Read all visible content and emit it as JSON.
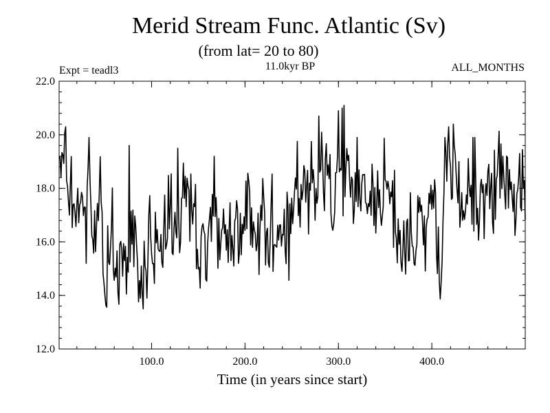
{
  "chart_data": {
    "type": "line",
    "title": "Merid Stream Func. Atlantic (Sv)",
    "subtitle": "(from lat= 20 to 80)",
    "period_label": "11.0kyr BP",
    "expt_label": "Expt = teadl3",
    "months_label": "ALL_MONTHS",
    "xlabel": "Time (in years since start)",
    "ylabel": "",
    "xlim": [
      1,
      500
    ],
    "ylim": [
      12.0,
      22.0
    ],
    "x_ticks": [
      {
        "value": 100,
        "label": "100.0"
      },
      {
        "value": 200,
        "label": "200.0"
      },
      {
        "value": 300,
        "label": "300.0"
      },
      {
        "value": 400,
        "label": "400.0"
      }
    ],
    "y_ticks": [
      {
        "value": 12,
        "label": "12.0"
      },
      {
        "value": 14,
        "label": "14.0"
      },
      {
        "value": 16,
        "label": "16.0"
      },
      {
        "value": 18,
        "label": "18.0"
      },
      {
        "value": 20,
        "label": "20.0"
      },
      {
        "value": 22,
        "label": "22.0"
      }
    ],
    "x_minor_step": 20,
    "y_minor_step": 0.4,
    "anchors": [
      [
        1,
        18.8
      ],
      [
        5,
        18.5
      ],
      [
        8,
        19.8
      ],
      [
        10,
        17.2
      ],
      [
        14,
        18.6
      ],
      [
        18,
        16.6
      ],
      [
        22,
        17.3
      ],
      [
        26,
        16.9
      ],
      [
        30,
        16.4
      ],
      [
        33,
        19.8
      ],
      [
        36,
        16.2
      ],
      [
        40,
        17.0
      ],
      [
        44,
        18.3
      ],
      [
        47,
        17.0
      ],
      [
        50,
        14.5
      ],
      [
        54,
        15.4
      ],
      [
        58,
        16.4
      ],
      [
        62,
        14.3
      ],
      [
        66,
        16.0
      ],
      [
        70,
        15.1
      ],
      [
        74,
        14.4
      ],
      [
        78,
        16.6
      ],
      [
        82,
        16.8
      ],
      [
        86,
        15.6
      ],
      [
        90,
        14.6
      ],
      [
        94,
        14.0
      ],
      [
        98,
        16.6
      ],
      [
        102,
        15.7
      ],
      [
        106,
        16.5
      ],
      [
        110,
        15.1
      ],
      [
        114,
        17.4
      ],
      [
        118,
        17.2
      ],
      [
        122,
        16.7
      ],
      [
        126,
        16.3
      ],
      [
        130,
        17.5
      ],
      [
        134,
        17.7
      ],
      [
        138,
        18.4
      ],
      [
        142,
        17.1
      ],
      [
        146,
        18.6
      ],
      [
        150,
        15.3
      ],
      [
        154,
        16.9
      ],
      [
        158,
        15.0
      ],
      [
        162,
        16.2
      ],
      [
        166,
        17.8
      ],
      [
        170,
        17.2
      ],
      [
        174,
        16.3
      ],
      [
        178,
        16.8
      ],
      [
        182,
        15.8
      ],
      [
        186,
        16.3
      ],
      [
        190,
        17.1
      ],
      [
        194,
        16.9
      ],
      [
        198,
        16.0
      ],
      [
        202,
        17.5
      ],
      [
        206,
        16.8
      ],
      [
        210,
        16.7
      ],
      [
        214,
        15.7
      ],
      [
        218,
        17.4
      ],
      [
        222,
        16.7
      ],
      [
        226,
        16.3
      ],
      [
        230,
        17.3
      ],
      [
        234,
        16.0
      ],
      [
        238,
        16.1
      ],
      [
        242,
        16.8
      ],
      [
        246,
        16.2
      ],
      [
        250,
        16.7
      ],
      [
        254,
        18.5
      ],
      [
        258,
        17.4
      ],
      [
        262,
        18.0
      ],
      [
        266,
        17.6
      ],
      [
        270,
        17.8
      ],
      [
        274,
        18.1
      ],
      [
        278,
        17.5
      ],
      [
        282,
        19.1
      ],
      [
        286,
        18.2
      ],
      [
        290,
        18.3
      ],
      [
        294,
        17.3
      ],
      [
        298,
        19.0
      ],
      [
        302,
        17.9
      ],
      [
        306,
        18.1
      ],
      [
        310,
        19.2
      ],
      [
        314,
        17.6
      ],
      [
        318,
        18.3
      ],
      [
        322,
        17.9
      ],
      [
        326,
        18.6
      ],
      [
        330,
        17.2
      ],
      [
        334,
        18.3
      ],
      [
        338,
        17.3
      ],
      [
        342,
        17.9
      ],
      [
        346,
        18.2
      ],
      [
        350,
        18.0
      ],
      [
        354,
        17.1
      ],
      [
        358,
        17.5
      ],
      [
        362,
        16.9
      ],
      [
        366,
        16.3
      ],
      [
        370,
        15.3
      ],
      [
        374,
        16.8
      ],
      [
        378,
        16.6
      ],
      [
        382,
        16.2
      ],
      [
        386,
        17.4
      ],
      [
        390,
        16.9
      ],
      [
        394,
        16.8
      ],
      [
        398,
        17.3
      ],
      [
        402,
        17.4
      ],
      [
        406,
        15.6
      ],
      [
        410,
        14.9
      ],
      [
        414,
        18.6
      ],
      [
        418,
        18.9
      ],
      [
        422,
        18.1
      ],
      [
        426,
        18.4
      ],
      [
        430,
        17.3
      ],
      [
        434,
        17.1
      ],
      [
        438,
        18.1
      ],
      [
        442,
        17.4
      ],
      [
        446,
        18.0
      ],
      [
        450,
        17.0
      ],
      [
        454,
        17.5
      ],
      [
        458,
        17.8
      ],
      [
        462,
        18.1
      ],
      [
        466,
        17.4
      ],
      [
        470,
        17.5
      ],
      [
        474,
        18.7
      ],
      [
        478,
        18.2
      ],
      [
        482,
        18.4
      ],
      [
        486,
        17.0
      ],
      [
        490,
        18.0
      ],
      [
        494,
        18.4
      ],
      [
        498,
        17.6
      ],
      [
        500,
        17.2
      ]
    ],
    "extrema": [
      [
        8,
        20.3
      ],
      [
        33,
        19.9
      ],
      [
        64,
        14.1
      ],
      [
        76,
        19.6
      ],
      [
        95,
        13.9
      ],
      [
        128,
        19.5
      ],
      [
        148,
        15.0
      ],
      [
        158,
        14.6
      ],
      [
        185,
        15.3
      ],
      [
        193,
        15.2
      ],
      [
        230,
        14.9
      ],
      [
        279,
        20.7
      ],
      [
        300,
        20.9
      ],
      [
        304,
        21.0
      ],
      [
        306,
        21.1
      ],
      [
        320,
        19.9
      ],
      [
        368,
        14.9
      ],
      [
        372,
        14.8
      ],
      [
        380,
        15.8
      ],
      [
        408,
        14.5
      ],
      [
        414,
        19.9
      ],
      [
        418,
        20.3
      ],
      [
        423,
        20.4
      ],
      [
        444,
        19.9
      ],
      [
        446,
        19.9
      ],
      [
        490,
        16.8
      ],
      [
        494,
        19.3
      ]
    ],
    "noise_amplitude": 1.2,
    "seed": 1729
  }
}
